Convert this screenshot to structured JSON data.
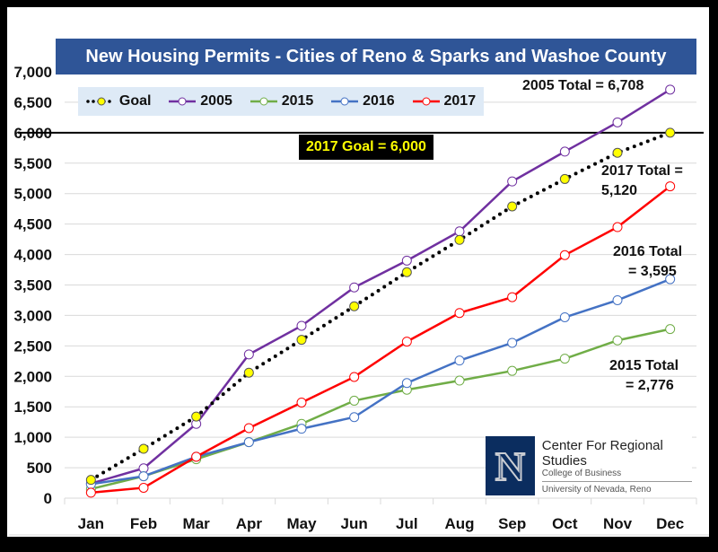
{
  "chart_data": {
    "type": "line",
    "title": "New Housing Permits - Cities of Reno & Sparks and Washoe County",
    "xlabel": "",
    "ylabel": "",
    "categories": [
      "Jan",
      "Feb",
      "Mar",
      "Apr",
      "May",
      "Jun",
      "Jul",
      "Aug",
      "Sep",
      "Oct",
      "Nov",
      "Dec"
    ],
    "ylim": [
      0,
      7000
    ],
    "yticks": [
      0,
      500,
      1000,
      1500,
      2000,
      2500,
      3000,
      3500,
      4000,
      4500,
      5000,
      5500,
      6000,
      6500,
      7000
    ],
    "ytick_labels": [
      "0",
      "500",
      "1,000",
      "1,500",
      "2,000",
      "2,500",
      "3,000",
      "3,500",
      "4,000",
      "4,500",
      "5,000",
      "5,500",
      "6,000",
      "6,500",
      "7,000"
    ],
    "grid": true,
    "legend_position": "top-left",
    "series": [
      {
        "name": "Goal",
        "color": "#000000",
        "marker_fill": "#FFFF00",
        "style": "dotted",
        "values": [
          300,
          810,
          1340,
          2060,
          2600,
          3150,
          3710,
          4240,
          4790,
          5240,
          5670,
          6000
        ]
      },
      {
        "name": "2005",
        "color": "#7030A0",
        "marker_fill": "#FFFFFF",
        "style": "solid",
        "values": [
          240,
          490,
          1220,
          2360,
          2830,
          3460,
          3900,
          4380,
          5200,
          5690,
          6170,
          6708
        ]
      },
      {
        "name": "2015",
        "color": "#70AD47",
        "marker_fill": "#FFFFFF",
        "style": "solid",
        "values": [
          150,
          360,
          640,
          920,
          1220,
          1600,
          1780,
          1930,
          2090,
          2290,
          2590,
          2776
        ]
      },
      {
        "name": "2016",
        "color": "#4472C4",
        "marker_fill": "#FFFFFF",
        "style": "solid",
        "values": [
          230,
          360,
          680,
          920,
          1140,
          1330,
          1890,
          2260,
          2550,
          2970,
          3250,
          3595
        ]
      },
      {
        "name": "2017",
        "color": "#FF0000",
        "marker_fill": "#FFFFFF",
        "style": "solid",
        "values": [
          90,
          170,
          680,
          1150,
          1570,
          1990,
          2570,
          3040,
          3300,
          3990,
          4450,
          5120
        ]
      }
    ],
    "reference_line": {
      "value": 6000,
      "label": "2017 Goal = 6,000"
    },
    "annotations": [
      {
        "text": "2005 Total = 6,708"
      },
      {
        "text": "2017 Total =",
        "text2": "5,120"
      },
      {
        "text": "2016 Total",
        "text2": "= 3,595"
      },
      {
        "text": "2015 Total",
        "text2": "= 2,776"
      }
    ]
  },
  "logo": {
    "letter": "N",
    "line1": "Center For Regional Studies",
    "line2": "College of Business",
    "line3": "University of Nevada, Reno"
  }
}
